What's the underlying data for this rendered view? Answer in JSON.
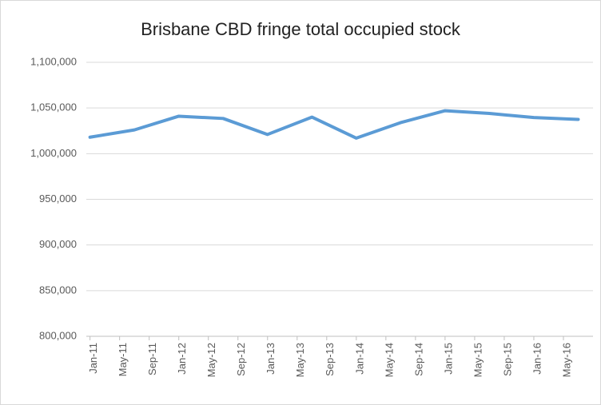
{
  "chart_data": {
    "type": "line",
    "title": "Brisbane CBD fringe total occupied stock",
    "x": [
      0,
      6,
      12,
      18,
      24,
      30,
      36,
      42,
      48,
      54,
      60,
      66
    ],
    "series": [
      {
        "name": "Total occupied stock",
        "color": "#5b9bd5",
        "values": [
          1018000,
          1026000,
          1041000,
          1038500,
          1021000,
          1040000,
          1017000,
          1034000,
          1047000,
          1044000,
          1039500,
          1037500
        ]
      }
    ],
    "xlim": [
      -0.5,
      68
    ],
    "xticks": [
      {
        "value": 0,
        "label": "Jan-11"
      },
      {
        "value": 4,
        "label": "May-11"
      },
      {
        "value": 8,
        "label": "Sep-11"
      },
      {
        "value": 12,
        "label": "Jan-12"
      },
      {
        "value": 16,
        "label": "May-12"
      },
      {
        "value": 20,
        "label": "Sep-12"
      },
      {
        "value": 24,
        "label": "Jan-13"
      },
      {
        "value": 28,
        "label": "May-13"
      },
      {
        "value": 32,
        "label": "Sep-13"
      },
      {
        "value": 36,
        "label": "Jan-14"
      },
      {
        "value": 40,
        "label": "May-14"
      },
      {
        "value": 44,
        "label": "Sep-14"
      },
      {
        "value": 48,
        "label": "Jan-15"
      },
      {
        "value": 52,
        "label": "May-15"
      },
      {
        "value": 56,
        "label": "Sep-15"
      },
      {
        "value": 60,
        "label": "Jan-16"
      },
      {
        "value": 64,
        "label": "May-16"
      }
    ],
    "ylim": [
      800000,
      1100000
    ],
    "yticks": [
      {
        "value": 800000,
        "label": "800,000"
      },
      {
        "value": 850000,
        "label": "850,000"
      },
      {
        "value": 900000,
        "label": "900,000"
      },
      {
        "value": 950000,
        "label": "950,000"
      },
      {
        "value": 1000000,
        "label": "1,000,000"
      },
      {
        "value": 1050000,
        "label": "1,050,000"
      },
      {
        "value": 1100000,
        "label": "1,100,000"
      }
    ],
    "grid": true
  }
}
